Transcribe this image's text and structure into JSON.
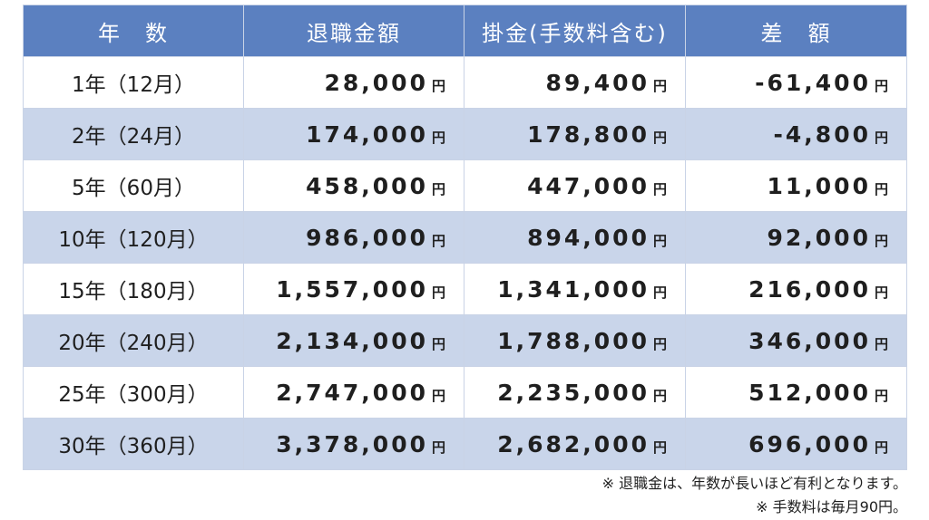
{
  "headers": [
    "年　数",
    "退職金額",
    "掛金(手数料含む)",
    "差　額"
  ],
  "unit": "円",
  "rows": [
    {
      "period": "1年（12月）",
      "retirement": "28,000",
      "contribution": "89,400",
      "difference": "-61,400"
    },
    {
      "period": "2年（24月）",
      "retirement": "174,000",
      "contribution": "178,800",
      "difference": "-4,800"
    },
    {
      "period": "5年（60月）",
      "retirement": "458,000",
      "contribution": "447,000",
      "difference": "11,000"
    },
    {
      "period": "10年（120月）",
      "retirement": "986,000",
      "contribution": "894,000",
      "difference": "92,000"
    },
    {
      "period": "15年（180月）",
      "retirement": "1,557,000",
      "contribution": "1,341,000",
      "difference": "216,000"
    },
    {
      "period": "20年（240月）",
      "retirement": "2,134,000",
      "contribution": "1,788,000",
      "difference": "346,000"
    },
    {
      "period": "25年（300月）",
      "retirement": "2,747,000",
      "contribution": "2,235,000",
      "difference": "512,000"
    },
    {
      "period": "30年（360月）",
      "retirement": "3,378,000",
      "contribution": "2,682,000",
      "difference": "696,000"
    }
  ],
  "notes": [
    "※ 退職金は、年数が長いほど有利となります。",
    "※ 手数料は毎月90円。"
  ]
}
